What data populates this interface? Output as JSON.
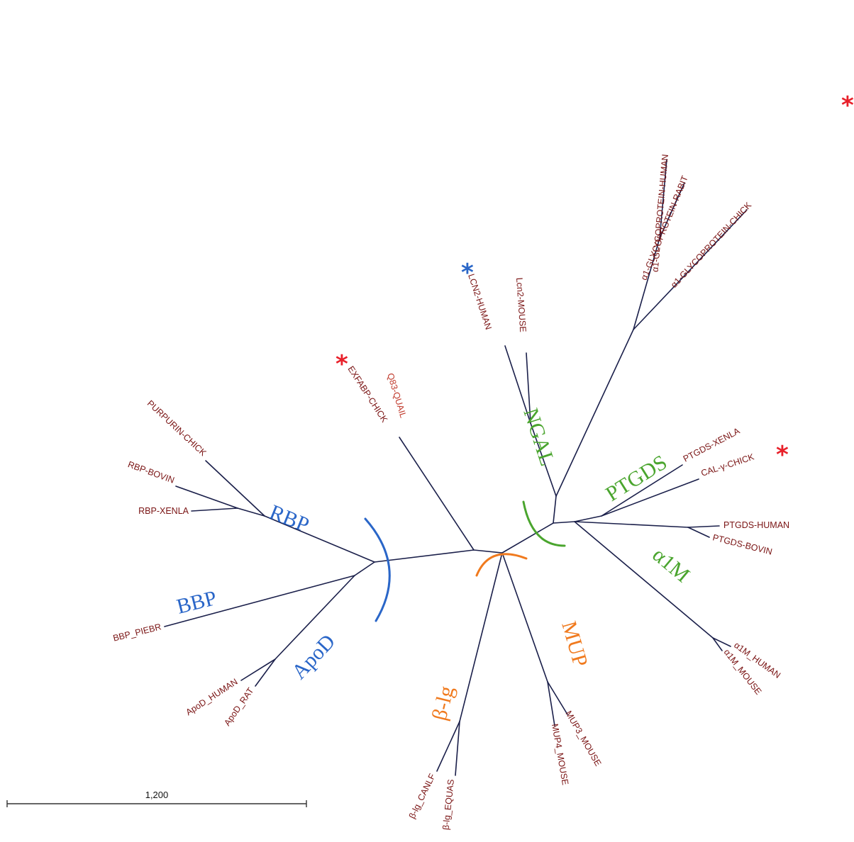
{
  "colors": {
    "branch": "#1a1f4a",
    "leaf_label": "#7a1414",
    "leaf_label_highlight": "#c0392b",
    "group_blue": "#2a66c8",
    "group_green": "#4aa52e",
    "group_orange": "#f07a1e",
    "star_red": "#e8202a",
    "star_blue": "#2a66c8"
  },
  "clades": {
    "rbp": "RBP",
    "bbp": "BBP",
    "apod": "ApoD",
    "ngal": "NGAL",
    "ptgds": "PTGDS",
    "a1m": "α1M",
    "mup": "MUP",
    "blg": "β-lg"
  },
  "leaves": {
    "a1gp_human": "α1-GLYCOPROTEIN-HUMAN",
    "a1gp_rabit": "α1-GLYCOPROTEIN-RABIT",
    "a1gp_chick": "α1-GLYCOPROTEIN-CHICK",
    "lcn2_human": "LCN2-HUMAN",
    "lcn2_mouse": "Lcn2-MOUSE",
    "exfabp_chick": "EXFABP-CHICK",
    "q83_quail": "Q83-QUAIL",
    "purpurin_chick": "PURPURIN-CHICK",
    "rbp_bovin": "RBP-BOVIN",
    "rbp_xenla": "RBP-XENLA",
    "bbp_piebr": "BBP_PIEBR",
    "apod_human": "ApoD_HUMAN",
    "apod_rat": "ApoD_RAT",
    "blg_canlf": "β-lg_CANLF",
    "blg_equas": "β-lg_EQUAS",
    "mup4_mouse": "MUP4_MOUSE",
    "mup3_mouse": "MUP3_MOUSE",
    "a1m_human": "α1M_HUMAN",
    "a1m_mouse": "α1M_MOUSE",
    "ptgds_xenla": "PTGDS-XENLA",
    "cal_g_chick": "CAL-γ-CHICK",
    "ptgds_human": "PTGDS-HUMAN",
    "ptgds_bovin": "PTGDS-BOVIN"
  },
  "markers": {
    "star": "*"
  },
  "scale_bar": {
    "label": "1,200"
  }
}
